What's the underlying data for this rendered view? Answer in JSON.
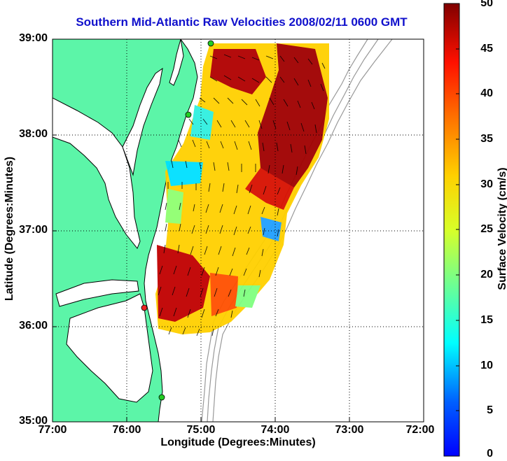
{
  "title": "Southern Mid-Atlantic Raw Velocities 2008/02/11 0600 GMT",
  "x_axis": {
    "label": "Longitude (Degrees:Minutes)",
    "ticks": [
      "77:00",
      "76:00",
      "75:00",
      "74:00",
      "73:00",
      "72:00"
    ]
  },
  "y_axis": {
    "label": "Latitude (Degrees:Minutes)",
    "ticks": [
      "39:00",
      "38:00",
      "37:00",
      "36:00",
      "35:00"
    ]
  },
  "colorbar": {
    "label": "Surface Velocity (cm/s)",
    "ticks": [
      "50",
      "45",
      "40",
      "35",
      "30",
      "25",
      "20",
      "15",
      "10",
      "5",
      "0"
    ],
    "range": [
      0,
      50
    ],
    "colormap": "jet"
  },
  "colors": {
    "land": "#5cf5a8",
    "water": "#ffffff",
    "coastline": "#000000",
    "bathymetry": "#999999",
    "title": "#1010cc",
    "station_active": "#22cc22",
    "station_inactive": "#ee2222"
  },
  "map": {
    "lon_range": [
      -77,
      -72
    ],
    "lat_range": [
      35,
      39
    ],
    "grid": "dotted",
    "stations": [
      {
        "lon": -74.9,
        "lat": 39.0,
        "status": "active"
      },
      {
        "lon": -75.1,
        "lat": 38.2,
        "status": "active"
      },
      {
        "lon": -75.7,
        "lat": 36.2,
        "status": "inactive"
      },
      {
        "lon": -75.5,
        "lat": 35.25,
        "status": "active"
      }
    ]
  }
}
